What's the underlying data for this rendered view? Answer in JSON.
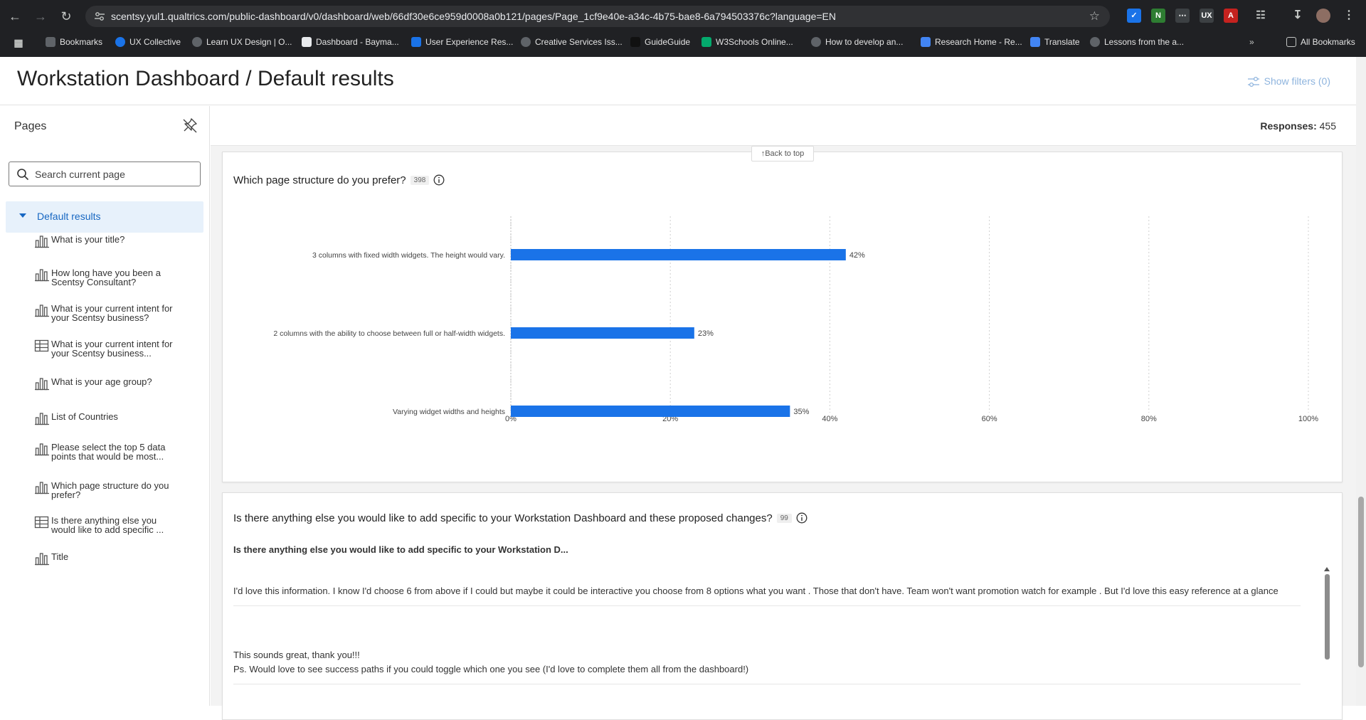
{
  "browser": {
    "url": "scentsy.yul1.qualtrics.com/public-dashboard/v0/dashboard/web/66df30e6ce959d0008a0b121/pages/Page_1cf9e40e-a34c-4b75-bae8-6a794503376c?language=EN",
    "extensions": [
      "ux-collective",
      "ux"
    ],
    "bookmarks": [
      {
        "label": "Bookmarks",
        "color": "#9aa0a6"
      },
      {
        "label": "UX Collective",
        "color": "#1a73e8"
      },
      {
        "label": "Learn UX Design | O...",
        "color": "#bdc1c6"
      },
      {
        "label": "Dashboard - Bayma...",
        "color": "#e8eaed"
      },
      {
        "label": "User Experience Res...",
        "color": "#1a73e8"
      },
      {
        "label": "Creative Services Iss...",
        "color": "#bdc1c6"
      },
      {
        "label": "GuideGuide",
        "color": "#444"
      },
      {
        "label": "W3Schools Online...",
        "color": "#04aa6d"
      },
      {
        "label": "How to develop an...",
        "color": "#bdc1c6"
      },
      {
        "label": "Research Home - Re...",
        "color": "#4285f4"
      },
      {
        "label": "Translate",
        "color": "#4285f4"
      },
      {
        "label": "Lessons from the a...",
        "color": "#bdc1c6"
      }
    ],
    "all_bookmarks": "All Bookmarks"
  },
  "header": {
    "title": "Workstation Dashboard / Default results",
    "show_filters": "Show filters (0)"
  },
  "sidebar": {
    "title": "Pages",
    "search_placeholder": "Search current page",
    "section": "Default results",
    "items": [
      {
        "icon": "bar-chart-icon",
        "label": "What is your title?"
      },
      {
        "icon": "bar-chart-icon",
        "label": "How long have you been a Scentsy Consultant?"
      },
      {
        "icon": "bar-chart-icon",
        "label": "What is your current intent for your Scentsy business?"
      },
      {
        "icon": "table-icon",
        "label": "What is your current intent for your Scentsy business..."
      },
      {
        "icon": "bar-chart-icon",
        "label": "What is your age group?"
      },
      {
        "icon": "bar-chart-icon",
        "label": "List of Countries"
      },
      {
        "icon": "bar-chart-icon",
        "label": "Please select the top 5 data points that would be most..."
      },
      {
        "icon": "bar-chart-icon",
        "label": "Which page structure do you prefer?"
      },
      {
        "icon": "table-icon",
        "label": "Is there anything else you would like to add specific ..."
      },
      {
        "icon": "bar-chart-icon",
        "label": "Title"
      }
    ]
  },
  "main": {
    "responses_label": "Responses:",
    "responses_value": "455",
    "back_to_top": "Back to top",
    "q1": {
      "title": "Which page structure do you prefer?",
      "count": "398"
    },
    "q2": {
      "title": "Is there anything else you would like to add specific to your Workstation Dashboard and these proposed changes?",
      "count": "99",
      "column_header": "Is there anything else you would like to add specific to your Workstation D...",
      "responses": [
        "I'd love this information. I know I'd choose 6 from above if I could but maybe it could be interactive you choose from 8 options what you want . Those that don't have. Team won't want promotion watch for example . But I'd love this easy reference at a glance",
        "This sounds great, thank you!!!\nPs. Would love to see success paths if you could toggle which one you see (I'd love to complete them all from the dashboard!)"
      ]
    }
  },
  "chart_data": {
    "type": "bar",
    "orientation": "horizontal",
    "categories": [
      "3 columns with fixed width widgets. The height would vary.",
      "2 columns with the ability to choose between full or half-width widgets.",
      "Varying widget widths and heights"
    ],
    "values": [
      42,
      23,
      35
    ],
    "value_labels": [
      "42%",
      "23%",
      "35%"
    ],
    "xlim": [
      0,
      100
    ],
    "x_ticks": [
      "0%",
      "20%",
      "40%",
      "60%",
      "80%",
      "100%"
    ],
    "grid": true,
    "bar_color": "#1a73e8"
  }
}
